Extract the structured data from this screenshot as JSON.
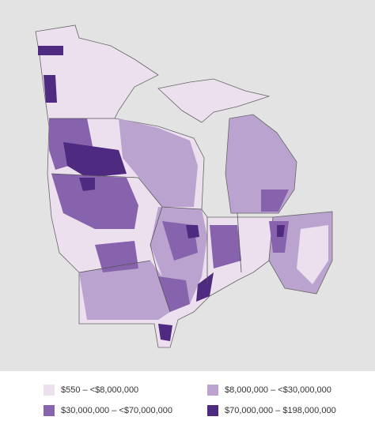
{
  "legend": {
    "items": [
      {
        "label": "$550 – <$8,000,000",
        "color": "#ecdfee"
      },
      {
        "label": "$8,000,000 – <$30,000,000",
        "color": "#bba3d0"
      },
      {
        "label": "$30,000,000 – <$70,000,000",
        "color": "#8763ad"
      },
      {
        "label": "$70,000,000 – $198,000,000",
        "color": "#4e2a80"
      }
    ]
  }
}
